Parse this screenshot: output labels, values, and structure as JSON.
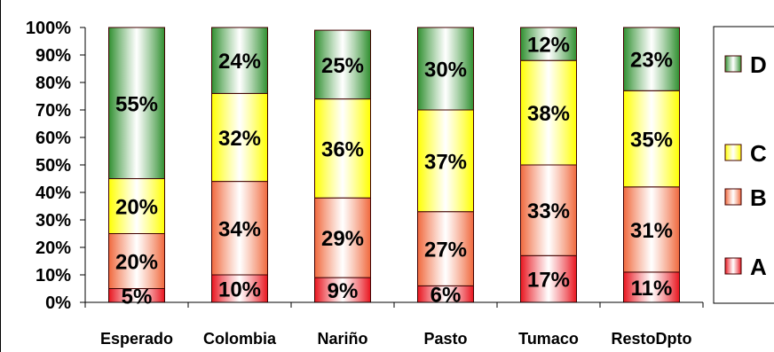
{
  "chart_data": {
    "type": "bar",
    "stacked": true,
    "categories": [
      "Esperado",
      "Colombia",
      "Nariño",
      "Pasto",
      "Tumaco",
      "RestoDpto"
    ],
    "series": [
      {
        "name": "A",
        "values": [
          5,
          10,
          9,
          6,
          17,
          11
        ],
        "labels": [
          "5%",
          "10%",
          "9%",
          "6%",
          "17%",
          "11%"
        ]
      },
      {
        "name": "B",
        "values": [
          20,
          34,
          29,
          27,
          33,
          31
        ],
        "labels": [
          "20%",
          "34%",
          "29%",
          "27%",
          "33%",
          "31%"
        ]
      },
      {
        "name": "C",
        "values": [
          20,
          32,
          36,
          37,
          38,
          35
        ],
        "labels": [
          "20%",
          "32%",
          "36%",
          "37%",
          "38%",
          "35%"
        ]
      },
      {
        "name": "D",
        "values": [
          55,
          24,
          25,
          30,
          12,
          23
        ],
        "labels": [
          "55%",
          "24%",
          "25%",
          "30%",
          "12%",
          "23%"
        ]
      }
    ],
    "y_ticks": [
      "0%",
      "10%",
      "20%",
      "30%",
      "40%",
      "50%",
      "60%",
      "70%",
      "80%",
      "90%",
      "100%"
    ],
    "ylim": [
      0,
      100
    ],
    "grid": false,
    "legend": {
      "placement": "right",
      "order": [
        "D",
        "C",
        "B",
        "A"
      ]
    },
    "colors": {
      "A": "#e8141e",
      "B": "#f0683c",
      "C": "#ffff00",
      "D": "#2f8f2f",
      "edge": "#400000",
      "axis": "#000000"
    }
  }
}
